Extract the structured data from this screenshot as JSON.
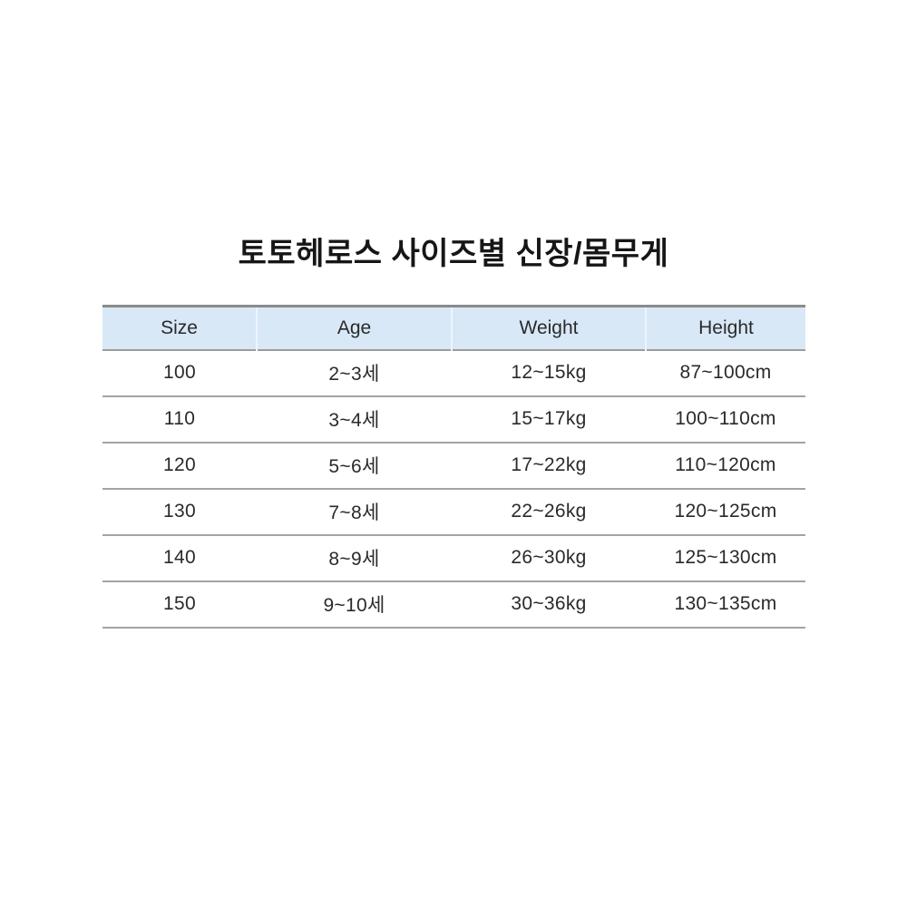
{
  "page": {
    "title": "토토헤로스 사이즈별 신장/몸무게"
  },
  "colors": {
    "header_bg": "#d9e8f7",
    "header_top_border": "#8b8b8b",
    "header_bottom_border": "#9c9c9c",
    "row_divider": "#a4a4a4",
    "header_cell_divider": "#eef5fc",
    "text": "#2a2a2a",
    "title_text": "#161616",
    "background": "#ffffff"
  },
  "table": {
    "headers": [
      "Size",
      "Age",
      "Weight",
      "Height"
    ],
    "rows": [
      [
        "100",
        "2~3세",
        "12~15kg",
        "87~100cm"
      ],
      [
        "110",
        "3~4세",
        "15~17kg",
        "100~110cm"
      ],
      [
        "120",
        "5~6세",
        "17~22kg",
        "110~120cm"
      ],
      [
        "130",
        "7~8세",
        "22~26kg",
        "120~125cm"
      ],
      [
        "140",
        "8~9세",
        "26~30kg",
        "125~130cm"
      ],
      [
        "150",
        "9~10세",
        "30~36kg",
        "130~135cm"
      ]
    ]
  }
}
